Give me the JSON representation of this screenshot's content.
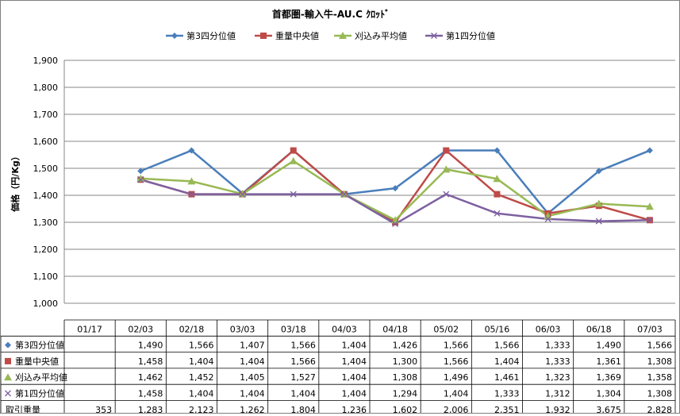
{
  "chart_data": {
    "type": "line",
    "title": "首都圏-輸入牛-AU.C ｸﾛｯﾄﾞ",
    "ylabel": "価格（円/Kg）",
    "ylim": [
      1000,
      1900
    ],
    "yticks": [
      "1,000",
      "1,100",
      "1,200",
      "1,300",
      "1,400",
      "1,500",
      "1,600",
      "1,700",
      "1,800",
      "1,900"
    ],
    "grid": true,
    "legend_position": "top",
    "categories": [
      "01/17",
      "02/03",
      "02/18",
      "03/03",
      "03/18",
      "04/03",
      "04/18",
      "05/02",
      "05/16",
      "06/03",
      "06/18",
      "07/03"
    ],
    "series": [
      {
        "name": "第3四分位値",
        "color": "#4a7ebb",
        "marker": "diamond",
        "values": [
          null,
          1490,
          1566,
          1407,
          1566,
          1404,
          1426,
          1566,
          1566,
          1333,
          1490,
          1566
        ],
        "labels": [
          "",
          "1,490",
          "1,566",
          "1,407",
          "1,566",
          "1,404",
          "1,426",
          "1,566",
          "1,566",
          "1,333",
          "1,490",
          "1,566"
        ]
      },
      {
        "name": "重量中央値",
        "color": "#be4b48",
        "marker": "square",
        "values": [
          null,
          1458,
          1404,
          1404,
          1566,
          1404,
          1300,
          1566,
          1404,
          1333,
          1361,
          1308
        ],
        "labels": [
          "",
          "1,458",
          "1,404",
          "1,404",
          "1,566",
          "1,404",
          "1,300",
          "1,566",
          "1,404",
          "1,333",
          "1,361",
          "1,308"
        ]
      },
      {
        "name": "刈込み平均値",
        "color": "#98b954",
        "marker": "triangle",
        "values": [
          null,
          1462,
          1452,
          1405,
          1527,
          1404,
          1308,
          1496,
          1461,
          1323,
          1369,
          1358
        ],
        "labels": [
          "",
          "1,462",
          "1,452",
          "1,405",
          "1,527",
          "1,404",
          "1,308",
          "1,496",
          "1,461",
          "1,323",
          "1,369",
          "1,358"
        ]
      },
      {
        "name": "第1四分位値",
        "color": "#7d60a0",
        "marker": "x",
        "values": [
          null,
          1458,
          1404,
          1404,
          1404,
          1404,
          1294,
          1404,
          1333,
          1312,
          1304,
          1308
        ],
        "labels": [
          "",
          "1,458",
          "1,404",
          "1,404",
          "1,404",
          "1,404",
          "1,294",
          "1,404",
          "1,333",
          "1,312",
          "1,304",
          "1,308"
        ]
      }
    ],
    "table_extra_row": {
      "name": "取引重量",
      "labels": [
        "353",
        "1,283",
        "2,123",
        "1,262",
        "1,804",
        "1,236",
        "1,602",
        "2,006",
        "2,351",
        "1,932",
        "3,675",
        "2,828"
      ]
    }
  }
}
